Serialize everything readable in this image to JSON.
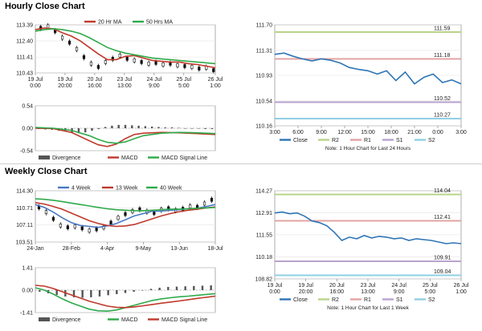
{
  "sections": {
    "hourly_title": "Hourly Close Chart",
    "weekly_title": "Weekly Close Chart"
  },
  "chart_data": [
    {
      "id": "hourly_price",
      "type": "line",
      "ylim": [
        110.43,
        113.39
      ],
      "y_ticks": [
        113.39,
        112.4,
        111.41,
        110.43
      ],
      "y_tick_labels": [
        "113.39",
        "112.40",
        "111.41",
        "110.43"
      ],
      "x_tick_labels": [
        [
          "19 Jul",
          "0:00"
        ],
        [
          "19 Jul",
          "20:00"
        ],
        [
          "20 Jul",
          "16:00"
        ],
        [
          "23 Jul",
          "13:00"
        ],
        [
          "24 Jul",
          "9:00"
        ],
        [
          "25 Jul",
          "5:00"
        ],
        [
          "26 Jul",
          "1:00"
        ]
      ],
      "x_tick_pos": [
        0,
        0.165,
        0.33,
        0.495,
        0.66,
        0.825,
        1.0
      ],
      "legend": [
        "20 Hr MA",
        "50 Hrs MA"
      ],
      "colors": {
        "ma20": "#c0392b",
        "ma50": "#2eaa4a",
        "candle": "#111111"
      },
      "series": [
        {
          "name": "20 Hr MA",
          "t": [
            0,
            0.05,
            0.1,
            0.15,
            0.2,
            0.25,
            0.3,
            0.35,
            0.4,
            0.45,
            0.5,
            0.55,
            0.6,
            0.65,
            0.7,
            0.75,
            0.8,
            0.85,
            0.9,
            0.95,
            1.0
          ],
          "values": [
            113.1,
            113.2,
            113.15,
            112.9,
            112.7,
            112.4,
            112.0,
            111.6,
            111.25,
            111.25,
            111.45,
            111.5,
            111.35,
            111.2,
            111.15,
            111.1,
            111.1,
            111.0,
            110.95,
            110.85,
            110.75
          ]
        },
        {
          "name": "50 Hrs MA",
          "t": [
            0,
            0.05,
            0.1,
            0.15,
            0.2,
            0.25,
            0.3,
            0.35,
            0.4,
            0.45,
            0.5,
            0.55,
            0.6,
            0.65,
            0.7,
            0.75,
            0.8,
            0.85,
            0.9,
            0.95,
            1.0
          ],
          "values": [
            113.0,
            113.1,
            113.15,
            113.1,
            113.0,
            112.85,
            112.6,
            112.3,
            112.0,
            111.8,
            111.65,
            111.55,
            111.45,
            111.35,
            111.3,
            111.25,
            111.2,
            111.15,
            111.1,
            111.05,
            111.0
          ]
        }
      ],
      "candles": {
        "t": [
          0.03,
          0.07,
          0.11,
          0.15,
          0.19,
          0.23,
          0.27,
          0.31,
          0.35,
          0.39,
          0.43,
          0.47,
          0.51,
          0.55,
          0.59,
          0.63,
          0.67,
          0.71,
          0.75,
          0.79,
          0.83,
          0.87,
          0.91,
          0.95,
          0.99
        ],
        "close": [
          113.2,
          113.3,
          113.0,
          112.6,
          112.3,
          111.9,
          111.4,
          111.0,
          110.8,
          111.1,
          111.3,
          111.5,
          111.3,
          111.2,
          111.1,
          111.0,
          111.05,
          110.95,
          111.0,
          110.9,
          110.85,
          110.8,
          110.7,
          110.75,
          110.6
        ]
      }
    },
    {
      "id": "hourly_macd",
      "type": "line",
      "ylim": [
        -0.54,
        0.54
      ],
      "y_ticks": [
        0.54,
        0.0,
        -0.54
      ],
      "y_tick_labels": [
        "0.54",
        "0.00",
        "-0.54"
      ],
      "legend": [
        "Divergence",
        "MACD",
        "MACD Signal Line"
      ],
      "colors": {
        "div": "#555555",
        "macd": "#c0392b",
        "signal": "#2eaa4a"
      },
      "series": [
        {
          "name": "MACD",
          "t": [
            0,
            0.1,
            0.2,
            0.3,
            0.35,
            0.4,
            0.45,
            0.5,
            0.55,
            0.6,
            0.7,
            0.8,
            0.9,
            1.0
          ],
          "values": [
            0.0,
            -0.01,
            -0.1,
            -0.3,
            -0.4,
            -0.44,
            -0.38,
            -0.25,
            -0.15,
            -0.12,
            -0.1,
            -0.11,
            -0.13,
            -0.15
          ]
        },
        {
          "name": "MACD Signal Line",
          "t": [
            0,
            0.1,
            0.2,
            0.3,
            0.35,
            0.4,
            0.45,
            0.5,
            0.55,
            0.6,
            0.7,
            0.8,
            0.9,
            1.0
          ],
          "values": [
            0.02,
            0.0,
            -0.05,
            -0.18,
            -0.27,
            -0.34,
            -0.36,
            -0.33,
            -0.25,
            -0.18,
            -0.12,
            -0.1,
            -0.11,
            -0.13
          ]
        }
      ],
      "divergence": [
        -0.02,
        -0.03,
        -0.04,
        -0.06,
        -0.08,
        -0.1,
        -0.12,
        -0.1,
        -0.06,
        -0.02,
        0.03,
        0.06,
        0.08,
        0.08,
        0.07,
        0.06,
        0.05,
        0.04,
        0.03,
        0.02,
        0.02,
        0.01,
        0.0,
        -0.01,
        -0.01,
        -0.02,
        -0.02
      ]
    },
    {
      "id": "hourly_pivot",
      "type": "line",
      "ylim": [
        110.16,
        111.7
      ],
      "y_ticks": [
        111.7,
        111.31,
        110.93,
        110.54,
        110.16
      ],
      "y_tick_labels": [
        "111.70",
        "111.31",
        "110.93",
        "110.54",
        "110.16"
      ],
      "x_tick_labels": [
        "3:00",
        "6:00",
        "9:00",
        "12:00",
        "15:00",
        "18:00",
        "21:00",
        "0:00",
        "3:00"
      ],
      "levels": [
        {
          "name": "R2",
          "value": 111.59,
          "label": "111.59",
          "color": "#b8d48a"
        },
        {
          "name": "R1",
          "value": 111.18,
          "label": "111.18",
          "color": "#e3a3a3"
        },
        {
          "name": "S1",
          "value": 110.52,
          "label": "110.52",
          "color": "#b9a3cf"
        },
        {
          "name": "S2",
          "value": 110.27,
          "label": "110.27",
          "color": "#8fd0e3"
        }
      ],
      "close_color": "#2e75b6",
      "close_t": [
        0,
        0.05,
        0.1,
        0.15,
        0.2,
        0.25,
        0.3,
        0.35,
        0.4,
        0.45,
        0.5,
        0.55,
        0.6,
        0.65,
        0.7,
        0.75,
        0.8,
        0.85,
        0.9,
        0.95,
        1.0
      ],
      "close_values": [
        111.25,
        111.27,
        111.22,
        111.18,
        111.15,
        111.18,
        111.16,
        111.12,
        111.05,
        111.02,
        111.0,
        110.95,
        111.0,
        110.85,
        110.98,
        110.8,
        110.9,
        110.95,
        110.82,
        110.86,
        110.8
      ],
      "legend": [
        "Close",
        "R2",
        "R1",
        "S1",
        "S2"
      ],
      "note": "Note: 1 Hour Chart for Last 24 Hours"
    },
    {
      "id": "weekly_price",
      "type": "line",
      "ylim": [
        103.51,
        114.3
      ],
      "y_ticks": [
        114.3,
        110.71,
        107.11,
        103.51
      ],
      "y_tick_labels": [
        "114.30",
        "110.71",
        "107.11",
        "103.51"
      ],
      "x_tick_labels": [
        "24-Jan",
        "28-Feb",
        "4-Apr",
        "9-May",
        "13-Jun",
        "18-Jul"
      ],
      "x_tick_pos": [
        0,
        0.2,
        0.4,
        0.6,
        0.8,
        1.0
      ],
      "legend": [
        "4 Week",
        "13 Week",
        "40 Week"
      ],
      "colors": {
        "w4": "#4a78c2",
        "w13": "#c0392b",
        "w40": "#2eaa4a",
        "candle": "#111111"
      },
      "series": [
        {
          "name": "4 Week",
          "t": [
            0,
            0.05,
            0.1,
            0.15,
            0.2,
            0.25,
            0.3,
            0.35,
            0.4,
            0.45,
            0.5,
            0.55,
            0.6,
            0.65,
            0.7,
            0.75,
            0.8,
            0.85,
            0.9,
            0.95,
            1.0
          ],
          "values": [
            111.4,
            110.8,
            109.8,
            108.6,
            107.6,
            107.0,
            106.8,
            106.6,
            106.9,
            107.4,
            108.2,
            109.0,
            109.5,
            110.0,
            110.0,
            110.2,
            110.3,
            110.5,
            110.6,
            111.0,
            111.4
          ]
        },
        {
          "name": "13 Week",
          "t": [
            0,
            0.05,
            0.1,
            0.15,
            0.2,
            0.25,
            0.3,
            0.35,
            0.4,
            0.45,
            0.5,
            0.55,
            0.6,
            0.65,
            0.7,
            0.75,
            0.8,
            0.85,
            0.9,
            0.95,
            1.0
          ],
          "values": [
            111.8,
            111.5,
            111.0,
            110.4,
            109.6,
            108.8,
            108.0,
            107.4,
            107.0,
            106.8,
            106.9,
            107.2,
            107.8,
            108.4,
            109.0,
            109.5,
            109.9,
            110.2,
            110.4,
            110.7,
            110.9
          ]
        },
        {
          "name": "40 Week",
          "t": [
            0,
            0.05,
            0.1,
            0.15,
            0.2,
            0.25,
            0.3,
            0.35,
            0.4,
            0.45,
            0.5,
            0.55,
            0.6,
            0.65,
            0.7,
            0.75,
            0.8,
            0.85,
            0.9,
            0.95,
            1.0
          ],
          "values": [
            112.6,
            112.5,
            112.3,
            112.0,
            111.7,
            111.4,
            111.1,
            110.8,
            110.5,
            110.3,
            110.2,
            110.1,
            110.1,
            110.2,
            110.3,
            110.4,
            110.4,
            110.5,
            110.6,
            110.7,
            110.8
          ]
        }
      ],
      "candles": {
        "t": [
          0.02,
          0.06,
          0.1,
          0.14,
          0.18,
          0.22,
          0.26,
          0.3,
          0.34,
          0.38,
          0.42,
          0.46,
          0.5,
          0.54,
          0.58,
          0.62,
          0.66,
          0.7,
          0.74,
          0.78,
          0.82,
          0.86,
          0.9,
          0.94,
          0.98
        ],
        "close": [
          110.8,
          109.8,
          108.4,
          107.0,
          106.6,
          106.8,
          106.4,
          105.9,
          106.2,
          106.6,
          107.6,
          108.6,
          109.4,
          110.0,
          110.4,
          109.9,
          109.6,
          110.3,
          110.6,
          110.2,
          110.5,
          111.0,
          110.9,
          111.6,
          112.4
        ]
      }
    },
    {
      "id": "weekly_macd",
      "type": "line",
      "ylim": [
        -1.41,
        1.41
      ],
      "y_ticks": [
        1.41,
        0.0,
        -1.41
      ],
      "y_tick_labels": [
        "1.41",
        "0.00",
        "-1.41"
      ],
      "legend": [
        "Divergence",
        "MACD",
        "MACD Signal Line"
      ],
      "colors": {
        "div": "#555555",
        "macd": "#2eaa4a",
        "signal": "#c0392b"
      },
      "series": [
        {
          "name": "MACD",
          "t": [
            0,
            0.05,
            0.1,
            0.15,
            0.2,
            0.25,
            0.3,
            0.35,
            0.4,
            0.45,
            0.5,
            0.55,
            0.6,
            0.65,
            0.7,
            0.75,
            0.8,
            0.85,
            0.9,
            0.95,
            1.0
          ],
          "values": [
            0.15,
            0.0,
            -0.25,
            -0.55,
            -0.8,
            -1.0,
            -1.2,
            -1.3,
            -1.32,
            -1.25,
            -1.1,
            -0.95,
            -0.8,
            -0.65,
            -0.55,
            -0.48,
            -0.42,
            -0.38,
            -0.32,
            -0.27,
            -0.22
          ]
        },
        {
          "name": "MACD Signal Line",
          "t": [
            0,
            0.05,
            0.1,
            0.15,
            0.2,
            0.25,
            0.3,
            0.35,
            0.4,
            0.45,
            0.5,
            0.55,
            0.6,
            0.65,
            0.7,
            0.75,
            0.8,
            0.85,
            0.9,
            0.95,
            1.0
          ],
          "values": [
            0.3,
            0.25,
            0.1,
            -0.1,
            -0.3,
            -0.5,
            -0.7,
            -0.85,
            -1.0,
            -1.08,
            -1.1,
            -1.05,
            -0.98,
            -0.9,
            -0.82,
            -0.75,
            -0.68,
            -0.6,
            -0.52,
            -0.45,
            -0.38
          ]
        }
      ],
      "divergence": [
        -0.1,
        -0.2,
        -0.3,
        -0.4,
        -0.45,
        -0.48,
        -0.45,
        -0.4,
        -0.32,
        -0.25,
        -0.18,
        -0.1,
        0.0,
        0.08,
        0.15,
        0.2,
        0.22,
        0.24,
        0.26,
        0.28,
        0.3
      ]
    },
    {
      "id": "weekly_pivot",
      "type": "line",
      "ylim": [
        108.82,
        114.27
      ],
      "y_ticks": [
        114.27,
        112.91,
        111.55,
        110.18,
        108.82
      ],
      "y_tick_labels": [
        "114.27",
        "112.91",
        "111.55",
        "110.18",
        "108.82"
      ],
      "x_tick_labels": [
        [
          "19 Jul",
          "0:00"
        ],
        [
          "19 Jul",
          "20:00"
        ],
        [
          "20 Jul",
          "16:00"
        ],
        [
          "23 Jul",
          "13:00"
        ],
        [
          "24 Jul",
          "9:00"
        ],
        [
          "25 Jul",
          "5:00"
        ],
        [
          "26 Jul",
          "1:00"
        ]
      ],
      "levels": [
        {
          "name": "R2",
          "value": 114.04,
          "label": "114.04",
          "color": "#b8d48a"
        },
        {
          "name": "R1",
          "value": 112.41,
          "label": "112.41",
          "color": "#e3a3a3"
        },
        {
          "name": "S1",
          "value": 109.91,
          "label": "109.91",
          "color": "#b9a3cf"
        },
        {
          "name": "S2",
          "value": 109.04,
          "label": "109.04",
          "color": "#8fd0e3"
        }
      ],
      "close_color": "#2e75b6",
      "close_t": [
        0,
        0.04,
        0.08,
        0.12,
        0.16,
        0.2,
        0.24,
        0.28,
        0.32,
        0.36,
        0.4,
        0.44,
        0.48,
        0.52,
        0.56,
        0.6,
        0.64,
        0.68,
        0.72,
        0.76,
        0.8,
        0.84,
        0.88,
        0.92,
        0.96,
        1.0
      ],
      "close_values": [
        112.9,
        112.95,
        112.85,
        112.9,
        112.7,
        112.4,
        112.3,
        112.1,
        111.7,
        111.2,
        111.4,
        111.3,
        111.5,
        111.35,
        111.45,
        111.4,
        111.3,
        111.35,
        111.2,
        111.3,
        111.25,
        111.2,
        111.1,
        111.0,
        111.05,
        111.0
      ],
      "legend": [
        "Close",
        "R2",
        "R1",
        "S1",
        "S2"
      ],
      "note": "Note: 1 Hour Chart for Last 1 Week"
    }
  ]
}
